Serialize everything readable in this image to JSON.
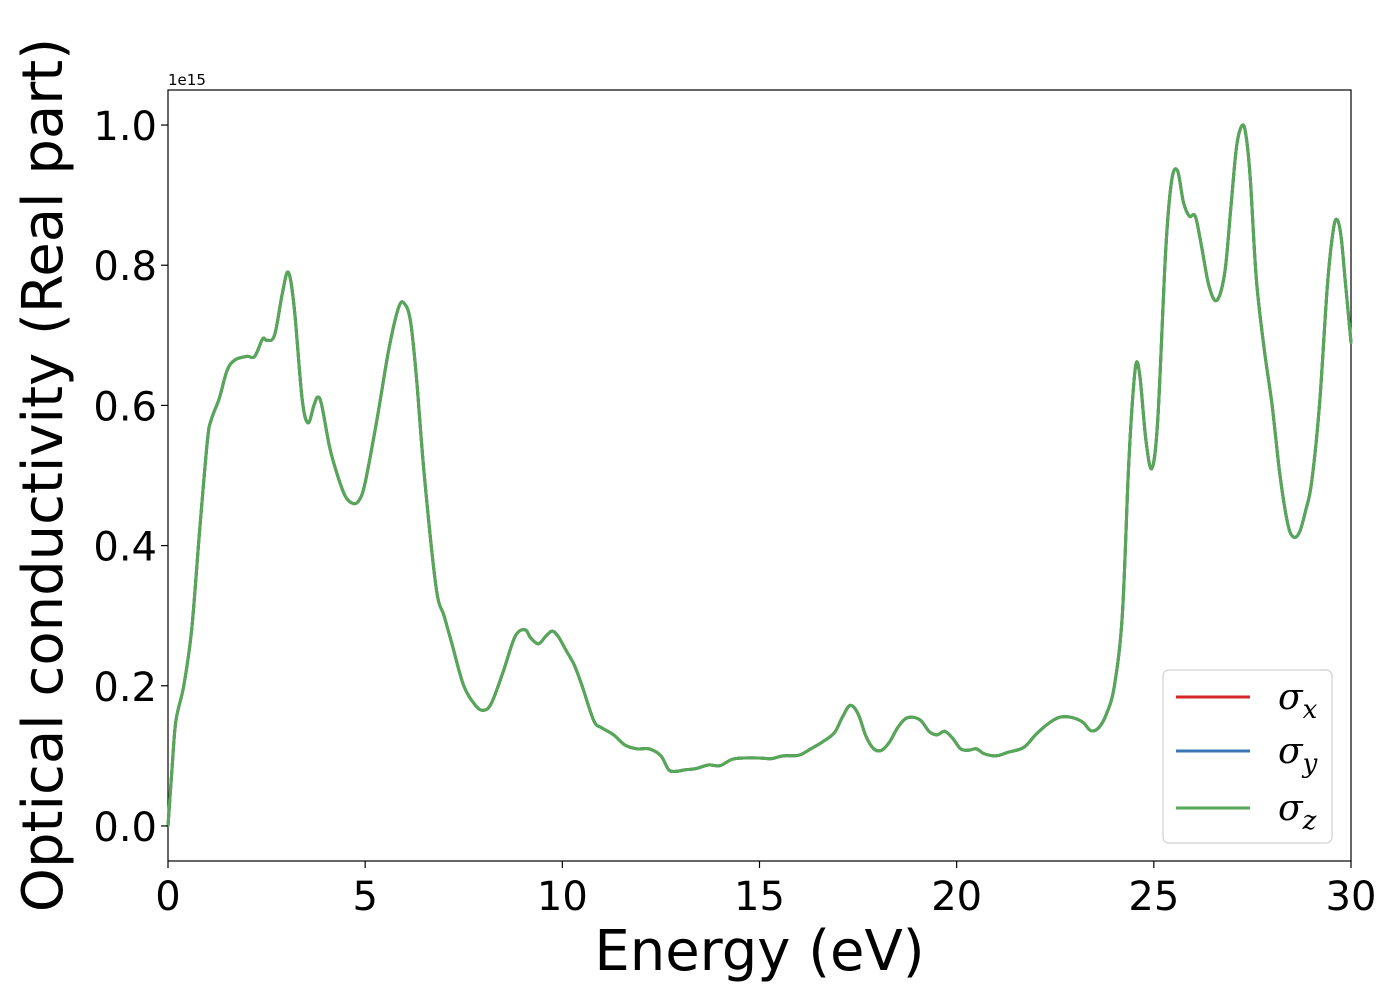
{
  "chart_data": {
    "type": "line",
    "xlabel": "Energy (eV)",
    "ylabel": "Optical conductivity (Real part)",
    "y_offset_text": "1e15",
    "y_scale": 1000000000000000.0,
    "xlim": [
      0,
      30
    ],
    "ylim": [
      -0.05,
      1.05
    ],
    "x_ticks": [
      0,
      5,
      10,
      15,
      20,
      25,
      30
    ],
    "x_tick_labels": [
      "0",
      "5",
      "10",
      "15",
      "20",
      "25",
      "30"
    ],
    "y_ticks": [
      0.0,
      0.2,
      0.4,
      0.6,
      0.8,
      1.0
    ],
    "y_tick_labels": [
      "0.0",
      "0.2",
      "0.4",
      "0.6",
      "0.8",
      "1.0"
    ],
    "grid": false,
    "legend_position": "lower-right",
    "x": [
      0,
      0.1,
      0.2,
      0.4,
      0.6,
      0.8,
      1.0,
      1.1,
      1.3,
      1.5,
      1.7,
      2.0,
      2.2,
      2.4,
      2.5,
      2.7,
      2.9,
      3.05,
      3.2,
      3.4,
      3.55,
      3.7,
      3.8,
      3.9,
      4.1,
      4.3,
      4.5,
      4.7,
      4.85,
      5.0,
      5.3,
      5.6,
      5.85,
      6.0,
      6.15,
      6.3,
      6.5,
      6.8,
      7.0,
      7.2,
      7.5,
      7.8,
      8.0,
      8.2,
      8.5,
      8.8,
      9.05,
      9.2,
      9.4,
      9.6,
      9.75,
      9.9,
      10.1,
      10.3,
      10.5,
      10.8,
      11.0,
      11.3,
      11.6,
      11.9,
      12.2,
      12.5,
      12.7,
      12.9,
      13.1,
      13.4,
      13.7,
      14.0,
      14.3,
      14.6,
      15.0,
      15.3,
      15.6,
      16.0,
      16.3,
      16.6,
      16.9,
      17.1,
      17.3,
      17.5,
      17.7,
      17.9,
      18.1,
      18.3,
      18.5,
      18.7,
      18.9,
      19.1,
      19.3,
      19.5,
      19.7,
      19.9,
      20.1,
      20.3,
      20.5,
      20.7,
      21.0,
      21.3,
      21.7,
      22.0,
      22.3,
      22.6,
      22.9,
      23.2,
      23.4,
      23.6,
      23.8,
      24.0,
      24.2,
      24.35,
      24.45,
      24.55,
      24.65,
      24.8,
      24.95,
      25.1,
      25.3,
      25.45,
      25.6,
      25.75,
      25.9,
      26.05,
      26.2,
      26.4,
      26.6,
      26.8,
      26.95,
      27.1,
      27.25,
      27.35,
      27.45,
      27.6,
      27.8,
      28.0,
      28.2,
      28.4,
      28.55,
      28.7,
      28.85,
      29.0,
      29.2,
      29.4,
      29.55,
      29.65,
      29.75,
      29.85,
      30.0
    ],
    "series": [
      {
        "name": "σ_x",
        "color": "#d62728",
        "values": [
          0.0,
          0.08,
          0.15,
          0.2,
          0.28,
          0.42,
          0.55,
          0.58,
          0.61,
          0.65,
          0.665,
          0.67,
          0.67,
          0.695,
          0.693,
          0.7,
          0.76,
          0.79,
          0.74,
          0.61,
          0.575,
          0.6,
          0.612,
          0.6,
          0.54,
          0.5,
          0.47,
          0.46,
          0.465,
          0.49,
          0.58,
          0.68,
          0.74,
          0.745,
          0.72,
          0.64,
          0.5,
          0.34,
          0.3,
          0.26,
          0.2,
          0.172,
          0.165,
          0.175,
          0.22,
          0.27,
          0.28,
          0.268,
          0.26,
          0.272,
          0.278,
          0.27,
          0.25,
          0.23,
          0.2,
          0.15,
          0.14,
          0.13,
          0.115,
          0.11,
          0.11,
          0.1,
          0.08,
          0.078,
          0.08,
          0.082,
          0.087,
          0.086,
          0.095,
          0.097,
          0.097,
          0.096,
          0.1,
          0.101,
          0.11,
          0.12,
          0.133,
          0.155,
          0.172,
          0.16,
          0.128,
          0.11,
          0.108,
          0.12,
          0.14,
          0.153,
          0.155,
          0.15,
          0.135,
          0.13,
          0.135,
          0.125,
          0.11,
          0.108,
          0.11,
          0.103,
          0.1,
          0.105,
          0.112,
          0.13,
          0.145,
          0.155,
          0.155,
          0.148,
          0.136,
          0.14,
          0.16,
          0.2,
          0.3,
          0.5,
          0.6,
          0.66,
          0.64,
          0.55,
          0.51,
          0.58,
          0.82,
          0.92,
          0.935,
          0.89,
          0.87,
          0.87,
          0.83,
          0.77,
          0.75,
          0.79,
          0.88,
          0.97,
          1.0,
          0.98,
          0.92,
          0.78,
          0.68,
          0.6,
          0.5,
          0.43,
          0.412,
          0.42,
          0.45,
          0.49,
          0.6,
          0.77,
          0.85,
          0.865,
          0.84,
          0.78,
          0.69
        ]
      },
      {
        "name": "σ_y",
        "color": "#3b78b5",
        "values": [
          0.0,
          0.08,
          0.15,
          0.2,
          0.28,
          0.42,
          0.55,
          0.58,
          0.61,
          0.65,
          0.665,
          0.67,
          0.67,
          0.695,
          0.693,
          0.7,
          0.76,
          0.79,
          0.74,
          0.61,
          0.575,
          0.6,
          0.612,
          0.6,
          0.54,
          0.5,
          0.47,
          0.46,
          0.465,
          0.49,
          0.58,
          0.68,
          0.74,
          0.745,
          0.72,
          0.64,
          0.5,
          0.34,
          0.3,
          0.26,
          0.2,
          0.172,
          0.165,
          0.175,
          0.22,
          0.27,
          0.28,
          0.268,
          0.26,
          0.272,
          0.278,
          0.27,
          0.25,
          0.23,
          0.2,
          0.15,
          0.14,
          0.13,
          0.115,
          0.11,
          0.11,
          0.1,
          0.08,
          0.078,
          0.08,
          0.082,
          0.087,
          0.086,
          0.095,
          0.097,
          0.097,
          0.096,
          0.1,
          0.101,
          0.11,
          0.12,
          0.133,
          0.155,
          0.172,
          0.16,
          0.128,
          0.11,
          0.108,
          0.12,
          0.14,
          0.153,
          0.155,
          0.15,
          0.135,
          0.13,
          0.135,
          0.125,
          0.11,
          0.108,
          0.11,
          0.103,
          0.1,
          0.105,
          0.112,
          0.13,
          0.145,
          0.155,
          0.155,
          0.148,
          0.136,
          0.14,
          0.16,
          0.2,
          0.3,
          0.5,
          0.6,
          0.66,
          0.64,
          0.55,
          0.51,
          0.58,
          0.82,
          0.92,
          0.935,
          0.89,
          0.87,
          0.87,
          0.83,
          0.77,
          0.75,
          0.79,
          0.88,
          0.97,
          1.0,
          0.98,
          0.92,
          0.78,
          0.68,
          0.6,
          0.5,
          0.43,
          0.412,
          0.42,
          0.45,
          0.49,
          0.6,
          0.77,
          0.85,
          0.865,
          0.84,
          0.78,
          0.69
        ]
      },
      {
        "name": "σ_z",
        "color": "#55a855",
        "values": [
          0.0,
          0.08,
          0.15,
          0.2,
          0.28,
          0.42,
          0.55,
          0.58,
          0.61,
          0.65,
          0.665,
          0.67,
          0.67,
          0.695,
          0.693,
          0.7,
          0.76,
          0.79,
          0.74,
          0.61,
          0.575,
          0.6,
          0.612,
          0.6,
          0.54,
          0.5,
          0.47,
          0.46,
          0.465,
          0.49,
          0.58,
          0.68,
          0.74,
          0.745,
          0.72,
          0.64,
          0.5,
          0.34,
          0.3,
          0.26,
          0.2,
          0.172,
          0.165,
          0.175,
          0.22,
          0.27,
          0.28,
          0.268,
          0.26,
          0.272,
          0.278,
          0.27,
          0.25,
          0.23,
          0.2,
          0.15,
          0.14,
          0.13,
          0.115,
          0.11,
          0.11,
          0.1,
          0.08,
          0.078,
          0.08,
          0.082,
          0.087,
          0.086,
          0.095,
          0.097,
          0.097,
          0.096,
          0.1,
          0.101,
          0.11,
          0.12,
          0.133,
          0.155,
          0.172,
          0.16,
          0.128,
          0.11,
          0.108,
          0.12,
          0.14,
          0.153,
          0.155,
          0.15,
          0.135,
          0.13,
          0.135,
          0.125,
          0.11,
          0.108,
          0.11,
          0.103,
          0.1,
          0.105,
          0.112,
          0.13,
          0.145,
          0.155,
          0.155,
          0.148,
          0.136,
          0.14,
          0.16,
          0.2,
          0.3,
          0.5,
          0.6,
          0.66,
          0.64,
          0.55,
          0.51,
          0.58,
          0.82,
          0.92,
          0.935,
          0.89,
          0.87,
          0.87,
          0.83,
          0.77,
          0.75,
          0.79,
          0.88,
          0.97,
          1.0,
          0.98,
          0.92,
          0.78,
          0.68,
          0.6,
          0.5,
          0.43,
          0.412,
          0.42,
          0.45,
          0.49,
          0.6,
          0.77,
          0.85,
          0.865,
          0.84,
          0.78,
          0.69
        ]
      }
    ],
    "legend": [
      {
        "symbol": "σ",
        "subscript": "x",
        "color": "#d62728"
      },
      {
        "symbol": "σ",
        "subscript": "y",
        "color": "#3b78b5"
      },
      {
        "symbol": "σ",
        "subscript": "z",
        "color": "#55a855"
      }
    ]
  }
}
